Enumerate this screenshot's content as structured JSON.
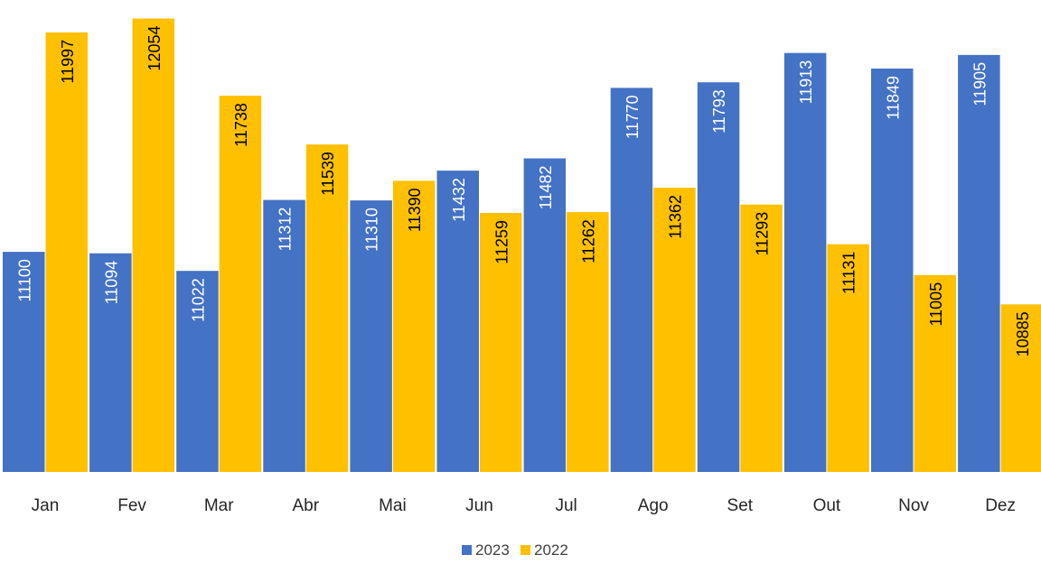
{
  "chart_data": {
    "type": "bar",
    "categories": [
      "Jan",
      "Fev",
      "Mar",
      "Abr",
      "Mai",
      "Jun",
      "Jul",
      "Ago",
      "Set",
      "Out",
      "Nov",
      "Dez"
    ],
    "series": [
      {
        "name": "2023",
        "color": "#4472C4",
        "label_color": "#ffffff",
        "values": [
          11100,
          11094,
          11022,
          11312,
          11310,
          11432,
          11482,
          11770,
          11793,
          11913,
          11849,
          11905
        ]
      },
      {
        "name": "2022",
        "color": "#FFC000",
        "label_color": "#000000",
        "values": [
          11997,
          12054,
          11738,
          11539,
          11390,
          11259,
          11262,
          11362,
          11293,
          11131,
          11005,
          10885
        ]
      }
    ],
    "title": "",
    "xlabel": "",
    "ylabel": "",
    "ylim": [
      10200,
      12100
    ],
    "grid": false,
    "legend": "bottom",
    "data_labels": "inside-rotated"
  }
}
